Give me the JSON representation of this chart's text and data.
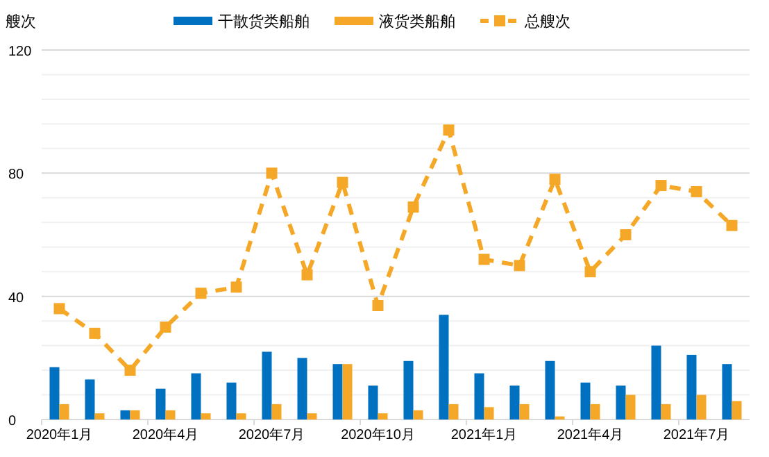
{
  "chart_data": {
    "type": "bar",
    "ylabel": "艘次",
    "categories": [
      "2020年1月",
      null,
      null,
      "2020年4月",
      null,
      null,
      "2020年7月",
      null,
      null,
      "2020年10月",
      null,
      null,
      "2021年1月",
      null,
      null,
      "2021年4月",
      null,
      null,
      "2021年7月",
      null
    ],
    "series": [
      {
        "name": "干散货类船舶",
        "color": "#0070c0",
        "values": [
          17,
          13,
          3,
          10,
          15,
          12,
          22,
          20,
          18,
          11,
          19,
          34,
          15,
          11,
          19,
          12,
          11,
          24,
          21,
          18
        ]
      },
      {
        "name": "液货类船舶",
        "color": "#f5a827",
        "values": [
          5,
          2,
          3,
          3,
          2,
          2,
          5,
          2,
          18,
          2,
          3,
          5,
          4,
          5,
          1,
          5,
          8,
          5,
          8,
          6
        ]
      },
      {
        "name": "总艘次",
        "type": "line",
        "color": "#f5a827",
        "values": [
          36,
          28,
          16,
          30,
          41,
          43,
          80,
          47,
          77,
          37,
          69,
          94,
          52,
          50,
          78,
          48,
          60,
          76,
          74,
          63
        ]
      }
    ],
    "marker": "square",
    "line_style": "dashed",
    "ylim": [
      0,
      120
    ],
    "yticks": [
      0,
      {
        "value": 8,
        "label": null
      },
      {
        "value": 16,
        "label": null
      },
      {
        "value": 24,
        "label": null
      },
      {
        "value": 32,
        "label": null
      },
      40,
      {
        "value": 48,
        "label": null
      },
      {
        "value": 56,
        "label": null
      },
      {
        "value": 64,
        "label": null
      },
      {
        "value": 72,
        "label": null
      },
      80,
      {
        "value": 88,
        "label": null
      },
      {
        "value": 96,
        "label": null
      },
      {
        "value": 104,
        "label": null
      },
      {
        "value": 112,
        "label": null
      },
      120
    ],
    "grid": "y",
    "legend": "top"
  }
}
